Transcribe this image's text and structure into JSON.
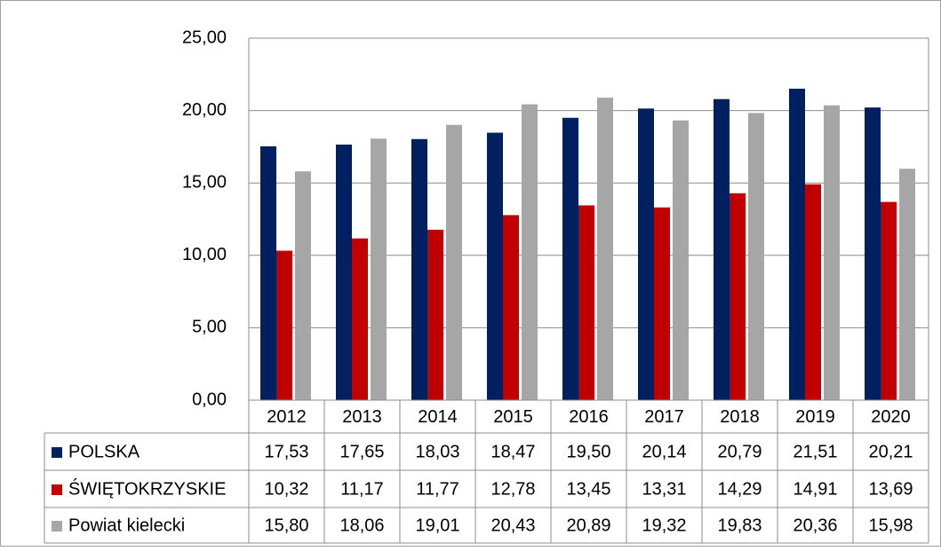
{
  "chart_data": {
    "type": "bar",
    "categories": [
      "2012",
      "2013",
      "2014",
      "2015",
      "2016",
      "2017",
      "2018",
      "2019",
      "2020"
    ],
    "series": [
      {
        "name": "POLSKA",
        "color": "#002060",
        "values": [
          17.53,
          17.65,
          18.03,
          18.47,
          19.5,
          20.14,
          20.79,
          21.51,
          20.21
        ],
        "value_labels": [
          "17,53",
          "17,65",
          "18,03",
          "18,47",
          "19,50",
          "20,14",
          "20,79",
          "21,51",
          "20,21"
        ]
      },
      {
        "name": "ŚWIĘTOKRZYSKIE",
        "color": "#c00000",
        "values": [
          10.32,
          11.17,
          11.77,
          12.78,
          13.45,
          13.31,
          14.29,
          14.91,
          13.69
        ],
        "value_labels": [
          "10,32",
          "11,17",
          "11,77",
          "12,78",
          "13,45",
          "13,31",
          "14,29",
          "14,91",
          "13,69"
        ]
      },
      {
        "name": "Powiat kielecki",
        "color": "#a6a6a6",
        "values": [
          15.8,
          18.06,
          19.01,
          20.43,
          20.89,
          19.32,
          19.83,
          20.36,
          15.98
        ],
        "value_labels": [
          "15,80",
          "18,06",
          "19,01",
          "20,43",
          "20,89",
          "19,32",
          "19,83",
          "20,36",
          "15,98"
        ]
      }
    ],
    "ylim": [
      0,
      25
    ],
    "yticks": [
      {
        "value": 0,
        "label": "0,00"
      },
      {
        "value": 5,
        "label": "5,00"
      },
      {
        "value": 10,
        "label": "10,00"
      },
      {
        "value": 15,
        "label": "15,00"
      },
      {
        "value": 20,
        "label": "20,00"
      },
      {
        "value": 25,
        "label": "25,00"
      }
    ],
    "grid": true
  }
}
